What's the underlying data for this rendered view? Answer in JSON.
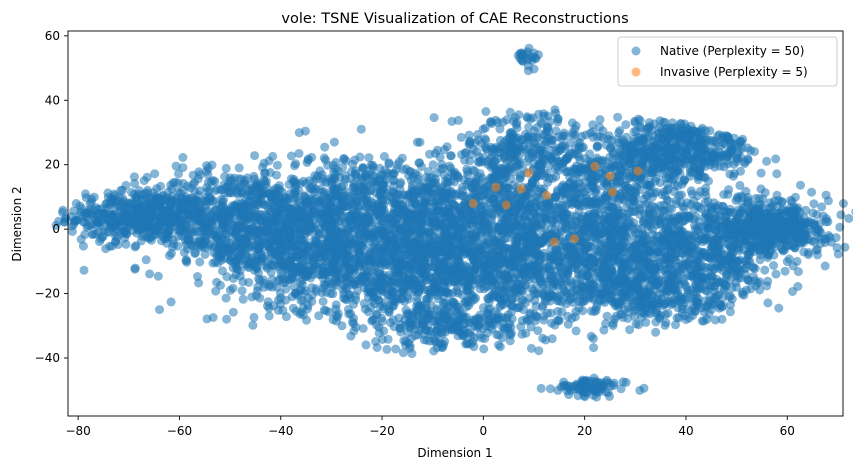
{
  "chart_data": {
    "type": "scatter",
    "title": "vole: TSNE Visualization of CAE Reconstructions",
    "xlabel": "Dimension 1",
    "ylabel": "Dimension 2",
    "xlim": [
      -82,
      71
    ],
    "ylim": [
      -58,
      61.5
    ],
    "xticks": [
      -80,
      -60,
      -40,
      -20,
      0,
      20,
      40,
      60
    ],
    "yticks": [
      -40,
      -20,
      0,
      20,
      40,
      60
    ],
    "grid": false,
    "legend_position": "top-right",
    "series": [
      {
        "name": "Native (Perplexity = 50)",
        "color": "#1f77b4",
        "alpha": 0.55,
        "clusters": [
          {
            "cx": -68,
            "cy": 4,
            "sx": 7,
            "sy": 4,
            "n": 450
          },
          {
            "cx": -50,
            "cy": 3,
            "sx": 9,
            "sy": 8,
            "n": 600
          },
          {
            "cx": -35,
            "cy": -6,
            "sx": 9,
            "sy": 9,
            "n": 700
          },
          {
            "cx": -25,
            "cy": 8,
            "sx": 10,
            "sy": 8,
            "n": 500
          },
          {
            "cx": -15,
            "cy": -12,
            "sx": 10,
            "sy": 9,
            "n": 700
          },
          {
            "cx": -5,
            "cy": 6,
            "sx": 9,
            "sy": 7,
            "n": 450
          },
          {
            "cx": 5,
            "cy": -12,
            "sx": 10,
            "sy": 9,
            "n": 750
          },
          {
            "cx": 8,
            "cy": 25,
            "sx": 7,
            "sy": 6,
            "n": 300
          },
          {
            "cx": 20,
            "cy": 5,
            "sx": 9,
            "sy": 9,
            "n": 600
          },
          {
            "cx": 28,
            "cy": -12,
            "sx": 9,
            "sy": 7,
            "n": 500
          },
          {
            "cx": 32,
            "cy": 22,
            "sx": 8,
            "sy": 6,
            "n": 350
          },
          {
            "cx": 43,
            "cy": 27,
            "sx": 6,
            "sy": 6,
            "n": 250
          },
          {
            "cx": 45,
            "cy": -5,
            "sx": 8,
            "sy": 8,
            "n": 550
          },
          {
            "cx": 58,
            "cy": 1,
            "sx": 5,
            "sy": 4,
            "n": 400
          },
          {
            "cx": -5,
            "cy": -30,
            "sx": 9,
            "sy": 4,
            "n": 200
          },
          {
            "cx": 35,
            "cy": -22,
            "sx": 8,
            "sy": 4,
            "n": 200
          },
          {
            "cx": 9,
            "cy": 53.5,
            "sx": 1.2,
            "sy": 1.5,
            "n": 25
          },
          {
            "cx": 21,
            "cy": -49.5,
            "sx": 3.5,
            "sy": 1.5,
            "n": 90
          }
        ]
      },
      {
        "name": "Invasive (Perplexity = 5)",
        "color": "#ff7f0e",
        "alpha": 0.55,
        "points": [
          [
            -2,
            8
          ],
          [
            2.5,
            13
          ],
          [
            4.5,
            7.5
          ],
          [
            7.5,
            12.5
          ],
          [
            9,
            17.5
          ],
          [
            12.5,
            10.5
          ],
          [
            14,
            -4
          ],
          [
            18,
            -3
          ],
          [
            22,
            19.5
          ],
          [
            25,
            16.5
          ],
          [
            25.5,
            11.5
          ],
          [
            30.5,
            18
          ]
        ]
      }
    ]
  }
}
